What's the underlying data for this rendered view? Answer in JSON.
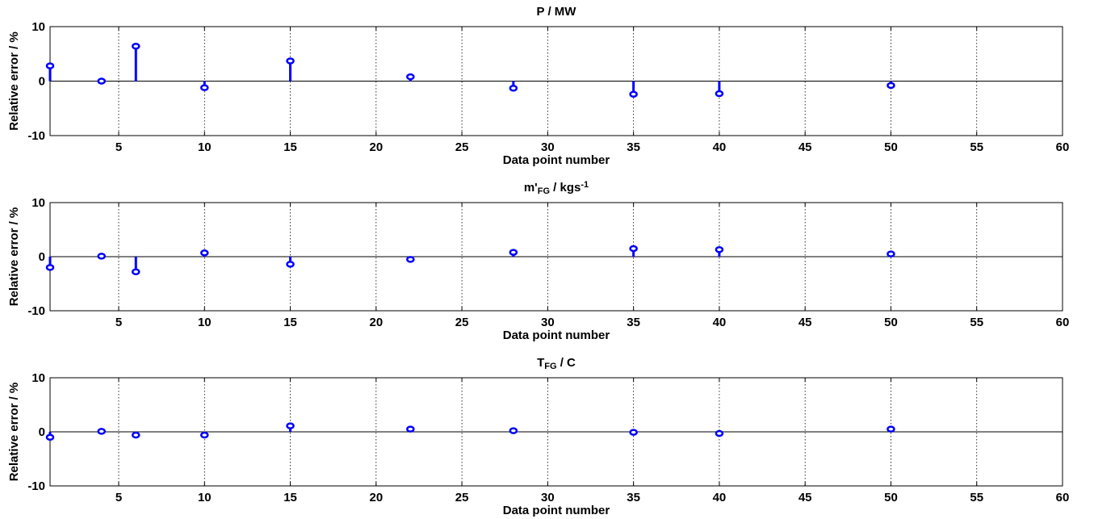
{
  "figure": {
    "xlabel": "Data point number",
    "ylabel": "Relative error / %"
  },
  "chart_data": [
    {
      "type": "stem",
      "title": "P / MW",
      "title_parts": [
        {
          "text": "P / MW",
          "style": "normal"
        }
      ],
      "xlabel": "Data point number",
      "ylabel": "Relative error / %",
      "xlim": [
        1,
        60
      ],
      "ylim": [
        -10,
        10
      ],
      "xticks": [
        5,
        10,
        15,
        20,
        25,
        30,
        35,
        40,
        45,
        50,
        55,
        60
      ],
      "yticks": [
        -10,
        0,
        10
      ],
      "grid": "x",
      "color": "#0000ff",
      "series": [
        {
          "x": [
            1,
            4,
            6,
            10,
            15,
            22,
            28,
            35,
            40,
            50
          ],
          "values": [
            2.8,
            0.0,
            6.4,
            -1.2,
            3.7,
            0.8,
            -1.3,
            -2.4,
            -2.3,
            -0.8
          ]
        }
      ]
    },
    {
      "type": "stem",
      "title": "m'FG / kgs-1",
      "title_parts": [
        {
          "text": "m'",
          "style": "normal"
        },
        {
          "text": "FG",
          "style": "sub"
        },
        {
          "text": " / kgs",
          "style": "normal"
        },
        {
          "text": "-1",
          "style": "sup"
        }
      ],
      "xlabel": "Data point number",
      "ylabel": "Relative error / %",
      "xlim": [
        1,
        60
      ],
      "ylim": [
        -10,
        10
      ],
      "xticks": [
        5,
        10,
        15,
        20,
        25,
        30,
        35,
        40,
        45,
        50,
        55,
        60
      ],
      "yticks": [
        -10,
        0,
        10
      ],
      "grid": "x",
      "color": "#0000ff",
      "series": [
        {
          "x": [
            1,
            4,
            6,
            10,
            15,
            22,
            28,
            35,
            40,
            50
          ],
          "values": [
            -2.0,
            0.1,
            -2.8,
            0.7,
            -1.4,
            -0.5,
            0.8,
            1.5,
            1.3,
            0.5
          ]
        }
      ]
    },
    {
      "type": "stem",
      "title": "TFG / C",
      "title_parts": [
        {
          "text": "T",
          "style": "normal"
        },
        {
          "text": "FG",
          "style": "sub"
        },
        {
          "text": " / C",
          "style": "normal"
        }
      ],
      "xlabel": "Data point number",
      "ylabel": "Relative error / %",
      "xlim": [
        1,
        60
      ],
      "ylim": [
        -10,
        10
      ],
      "xticks": [
        5,
        10,
        15,
        20,
        25,
        30,
        35,
        40,
        45,
        50,
        55,
        60
      ],
      "yticks": [
        -10,
        0,
        10
      ],
      "grid": "x",
      "color": "#0000ff",
      "series": [
        {
          "x": [
            1,
            4,
            6,
            10,
            15,
            22,
            28,
            35,
            40,
            50
          ],
          "values": [
            -1.0,
            0.1,
            -0.6,
            -0.6,
            1.1,
            0.5,
            0.2,
            -0.1,
            -0.3,
            0.5
          ]
        }
      ]
    }
  ]
}
